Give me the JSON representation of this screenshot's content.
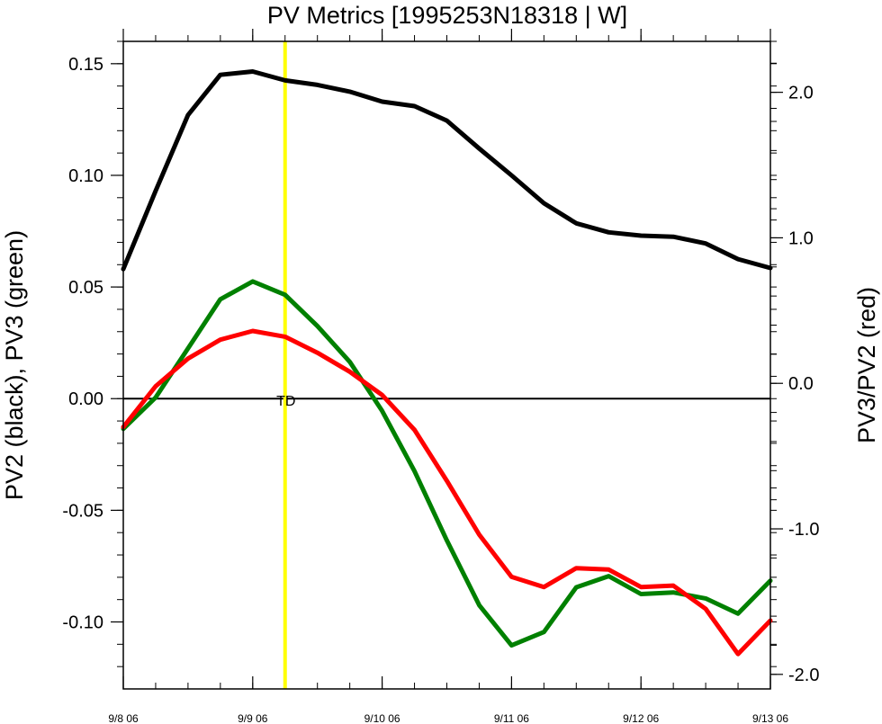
{
  "chart_data": {
    "type": "line",
    "title": "PV Metrics [1995253N18318 | W]",
    "x_unit": "days",
    "x_ticks": [
      {
        "value": 0,
        "label": "9/8 06"
      },
      {
        "value": 1,
        "label": "9/9 06"
      },
      {
        "value": 2,
        "label": "9/10 06"
      },
      {
        "value": 3,
        "label": "9/11 06"
      },
      {
        "value": 4,
        "label": "9/12 06"
      },
      {
        "value": 5,
        "label": "9/13 06"
      }
    ],
    "xlim": [
      0,
      5
    ],
    "ylabel_left": "PV2 (black), PV3 (green)",
    "ylim_left": [
      -0.13,
      0.16
    ],
    "yticks_left": [
      {
        "value": 0.15,
        "label": "0.15"
      },
      {
        "value": 0.1,
        "label": "0.10"
      },
      {
        "value": 0.05,
        "label": "0.05"
      },
      {
        "value": 0.0,
        "label": "0.00"
      },
      {
        "value": -0.05,
        "label": "-0.05"
      },
      {
        "value": -0.1,
        "label": "-0.10"
      }
    ],
    "ylabel_right": "PV3/PV2 (red)",
    "ylim_right": [
      -2.1,
      2.35
    ],
    "yticks_right": [
      {
        "value": 2.0,
        "label": "2.0"
      },
      {
        "value": 1.0,
        "label": "1.0"
      },
      {
        "value": 0.0,
        "label": "0.0"
      },
      {
        "value": -1.0,
        "label": "-1.0"
      },
      {
        "value": -2.0,
        "label": "-2.0"
      }
    ],
    "x": [
      0,
      0.25,
      0.5,
      0.75,
      1.0,
      1.25,
      1.5,
      1.75,
      2.0,
      2.25,
      2.5,
      2.75,
      3.0,
      3.25,
      3.5,
      3.75,
      4.0,
      4.25,
      4.5,
      4.75,
      5.0
    ],
    "series": [
      {
        "axis": "left",
        "color": "#000000",
        "values": [
          0.058,
          0.093,
          0.127,
          0.145,
          0.1465,
          0.1425,
          0.1405,
          0.1375,
          0.133,
          0.131,
          0.1245,
          0.112,
          0.1,
          0.0875,
          0.0785,
          0.0745,
          0.073,
          0.0725,
          0.0695,
          0.0625,
          0.0585
        ]
      },
      {
        "axis": "left",
        "color": "#008000",
        "values": [
          -0.0135,
          0.0005,
          0.0225,
          0.0445,
          0.0525,
          0.0465,
          0.0325,
          0.0165,
          -0.0055,
          -0.0325,
          -0.0635,
          -0.0925,
          -0.1105,
          -0.1045,
          -0.0845,
          -0.0795,
          -0.0875,
          -0.0868,
          -0.0895,
          -0.0963,
          -0.0815
        ]
      },
      {
        "axis": "right",
        "color": "#ff0000",
        "values": [
          -0.3,
          -0.02,
          0.17,
          0.3,
          0.36,
          0.32,
          0.21,
          0.08,
          -0.08,
          -0.32,
          -0.67,
          -1.04,
          -1.33,
          -1.4,
          -1.27,
          -1.28,
          -1.4,
          -1.39,
          -1.55,
          -1.86,
          -1.63
        ]
      }
    ],
    "reference_line": {
      "value": 0,
      "axis": "left",
      "color": "#000000"
    },
    "marker_line": {
      "x": 1.25,
      "color": "#ffff00",
      "label": "TD"
    },
    "grid": false,
    "legend": "none"
  }
}
